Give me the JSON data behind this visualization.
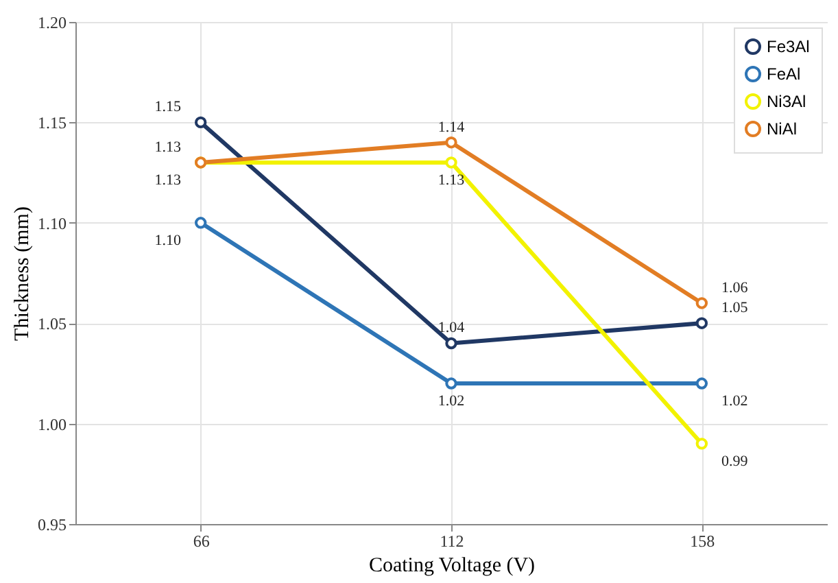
{
  "chart_data": {
    "type": "line",
    "xlabel": "Coating Voltage (V)",
    "ylabel": "Thickness (mm)",
    "categories": [
      "66",
      "112",
      "158"
    ],
    "series": [
      {
        "name": "Fe3Al",
        "color": "#203864",
        "values": [
          1.15,
          1.04,
          1.05
        ],
        "value_labels": [
          "1.15",
          "1.04",
          "1.05"
        ]
      },
      {
        "name": "FeAl",
        "color": "#2e75b6",
        "values": [
          1.1,
          1.02,
          1.02
        ],
        "value_labels": [
          "1.10",
          "1.02",
          "1.02"
        ]
      },
      {
        "name": "Ni3Al",
        "color": "#f2f200",
        "values": [
          1.13,
          1.13,
          0.99
        ],
        "value_labels": [
          "1.13",
          "1.13",
          "0.99"
        ]
      },
      {
        "name": "NiAl",
        "color": "#e27d24",
        "values": [
          1.13,
          1.14,
          1.06
        ],
        "value_labels": [
          "1.13",
          "1.14",
          "1.06"
        ]
      }
    ],
    "ylim": [
      0.95,
      1.2
    ],
    "yticks": [
      {
        "value": 0.95,
        "label": "0.95"
      },
      {
        "value": 1,
        "label": "1.00"
      },
      {
        "value": 1.05,
        "label": "1.05"
      },
      {
        "value": 1.1,
        "label": "1.10"
      },
      {
        "value": 1.15,
        "label": "1.15"
      },
      {
        "value": 1.2,
        "label": "1.20"
      }
    ],
    "grid": true,
    "legend": "top right",
    "marker": "circle",
    "line_style": "solid"
  }
}
